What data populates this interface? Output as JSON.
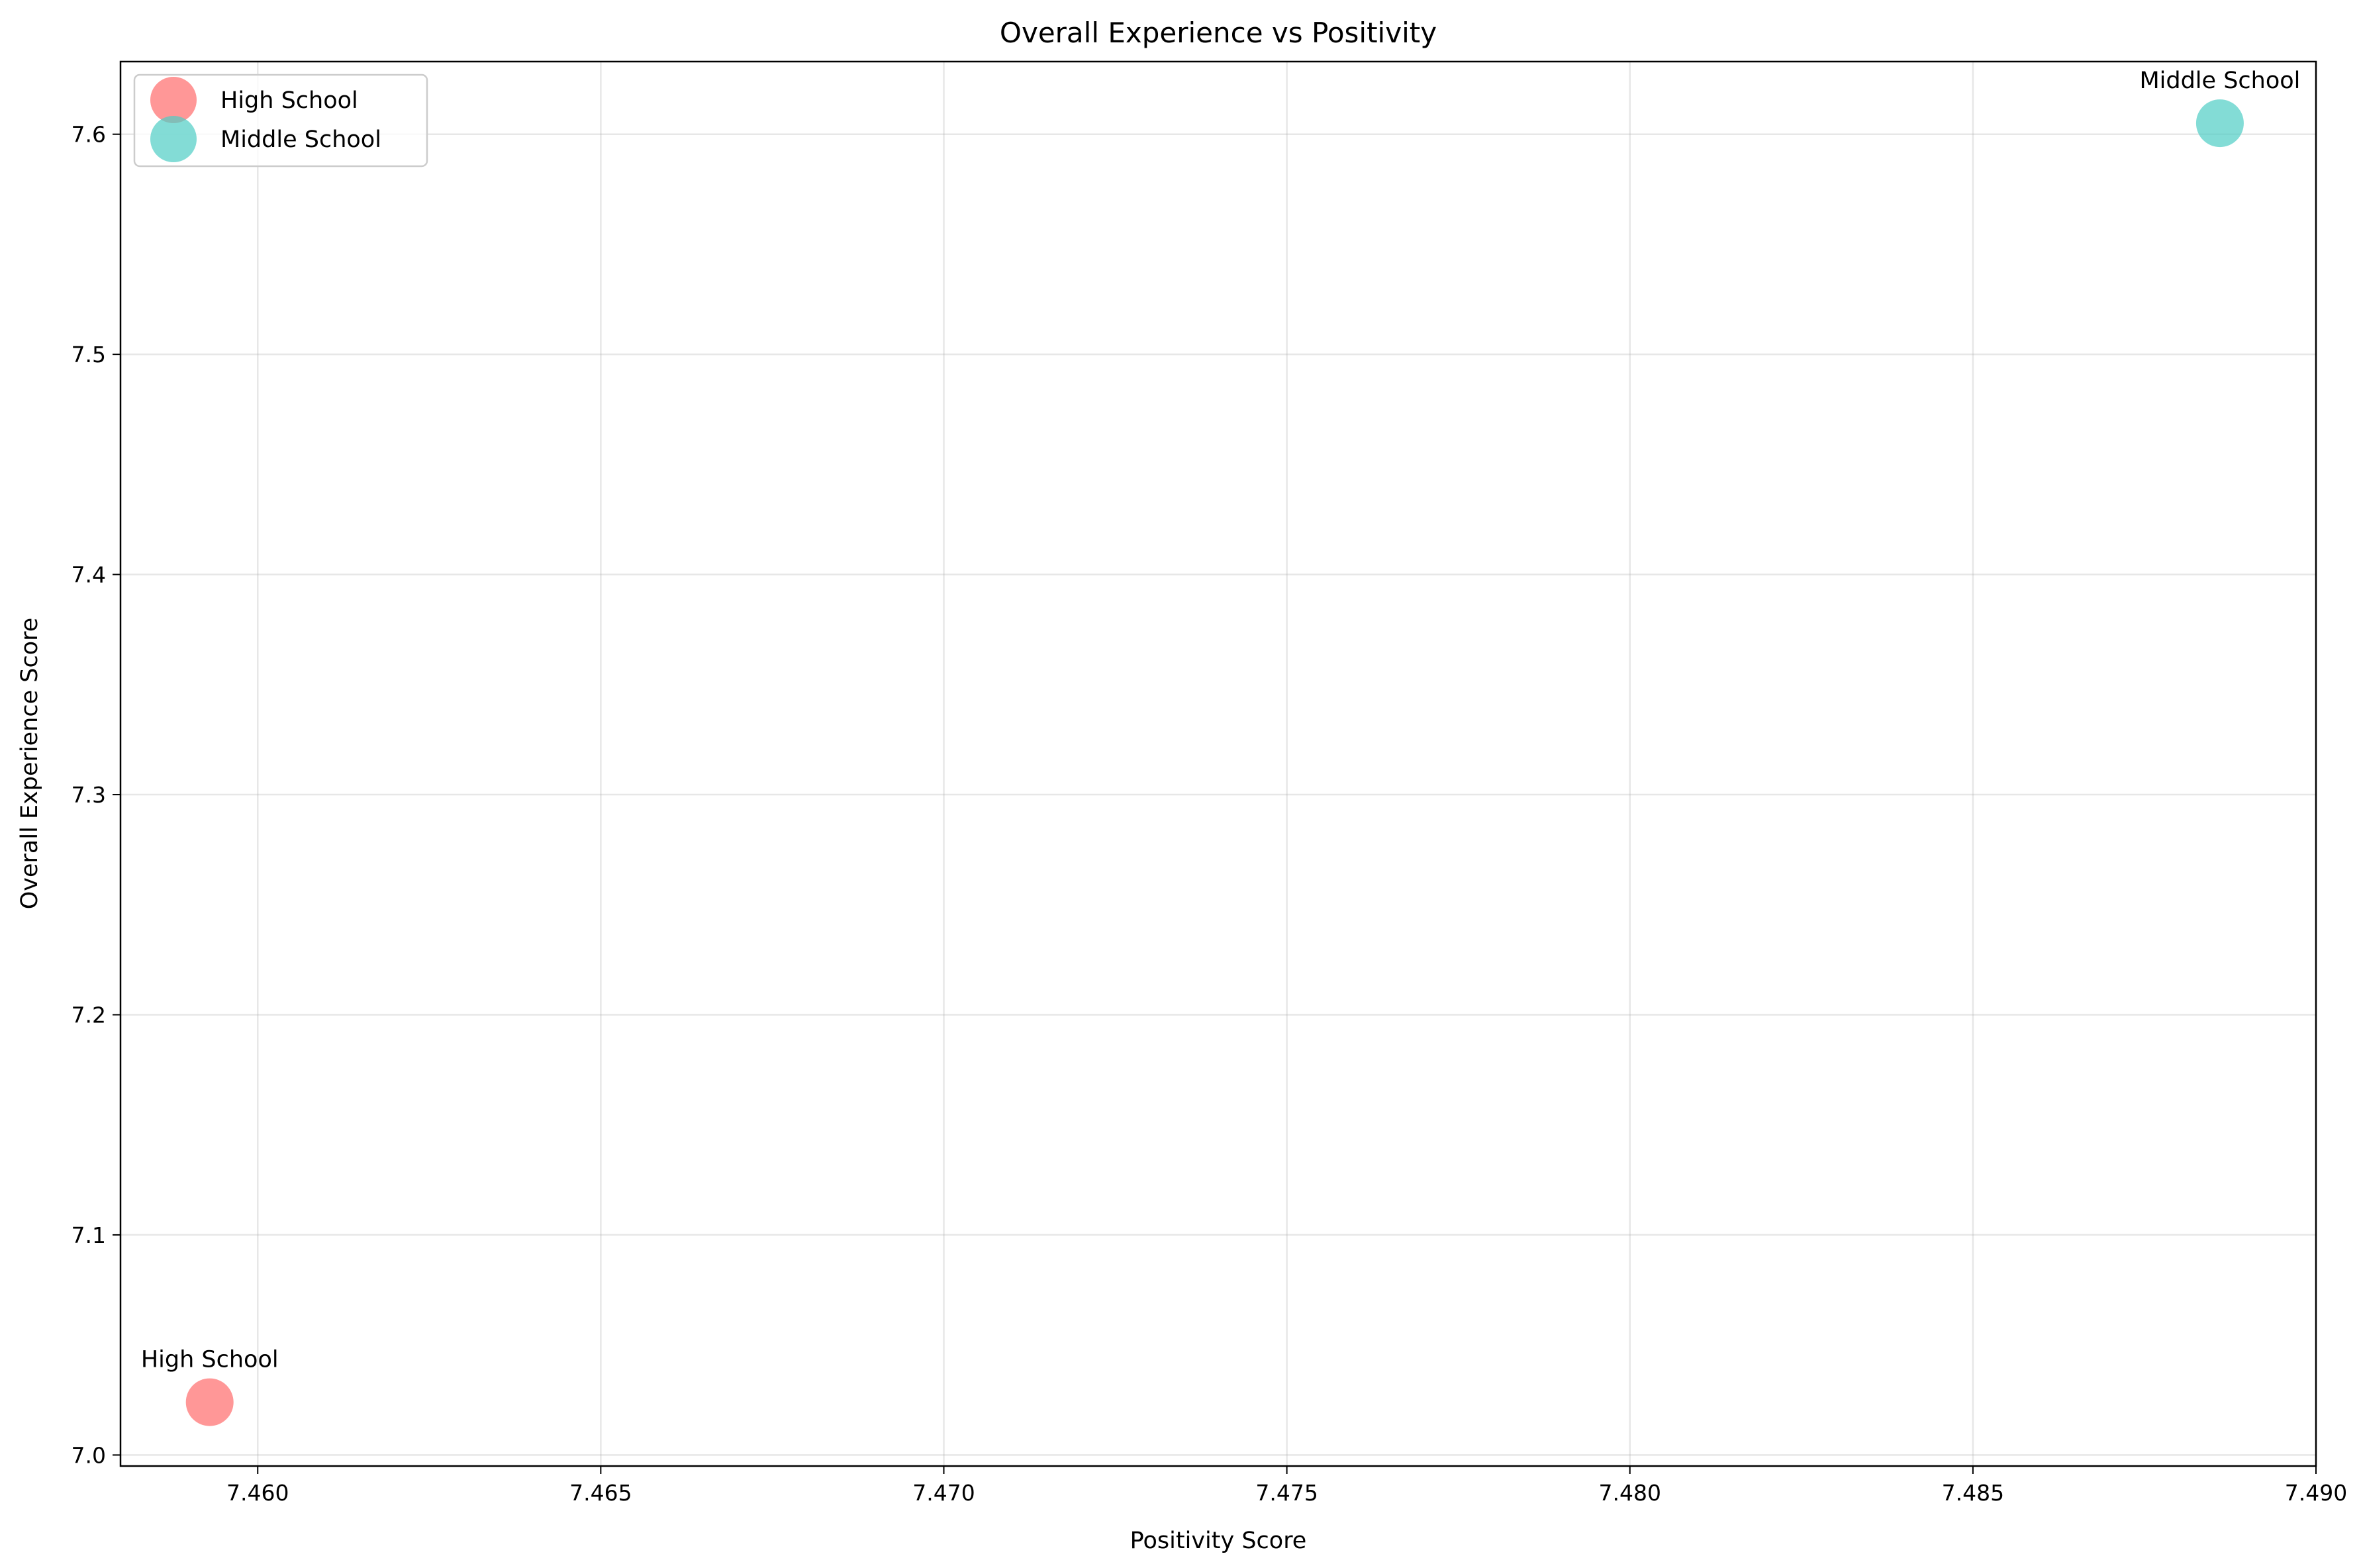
{
  "chart_data": {
    "type": "scatter",
    "title": "Overall Experience vs Positivity",
    "xlabel": "Positivity Score",
    "ylabel": "Overall Experience Score",
    "xlim": [
      7.458,
      7.49
    ],
    "ylim": [
      6.995,
      7.633
    ],
    "xticks": [
      7.46,
      7.465,
      7.47,
      7.475,
      7.48,
      7.485,
      7.49
    ],
    "xtick_labels": [
      "7.460",
      "7.465",
      "7.470",
      "7.475",
      "7.480",
      "7.485",
      "7.490"
    ],
    "yticks": [
      7.0,
      7.1,
      7.2,
      7.3,
      7.4,
      7.5,
      7.6
    ],
    "ytick_labels": [
      "7.0",
      "7.1",
      "7.2",
      "7.3",
      "7.4",
      "7.5",
      "7.6"
    ],
    "grid": true,
    "legend_position": "top-left",
    "series": [
      {
        "name": "High School",
        "color": "#FF6B6B",
        "points": [
          {
            "x": 7.4593,
            "y": 7.024,
            "label": "High School"
          }
        ]
      },
      {
        "name": "Middle School",
        "color": "#4ECDC4",
        "points": [
          {
            "x": 7.4886,
            "y": 7.605,
            "label": "Middle School"
          }
        ]
      }
    ]
  }
}
